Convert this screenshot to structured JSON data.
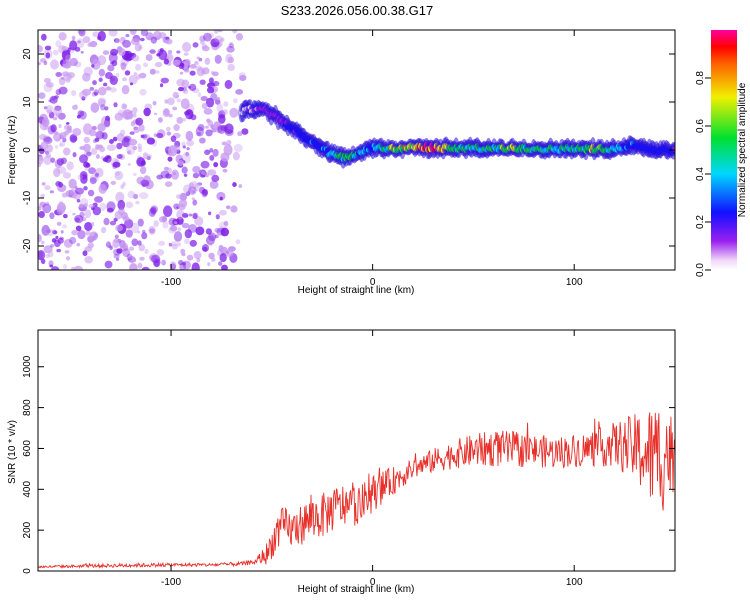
{
  "title": "S233.2026.056.00.38.G17",
  "chart_data": [
    {
      "type": "heatmap",
      "name": "spectrogram",
      "title": "S233.2026.056.00.38.G17",
      "xlabel": "Height of straight line (km)",
      "ylabel": "Frequency (Hz)",
      "xlim": [
        -166,
        150
      ],
      "ylim": [
        -25,
        25
      ],
      "x_ticks": [
        -100,
        0,
        100
      ],
      "y_ticks": [
        -20,
        -10,
        0,
        10,
        20
      ],
      "colorbar": {
        "label": "Normalized spectral amplitude",
        "range": [
          0.0,
          1.0
        ],
        "ticks": [
          0.0,
          0.2,
          0.4,
          0.6,
          0.8
        ],
        "tick_labels": [
          "0.0",
          "0.2",
          "0.4",
          "0.6",
          "0.8"
        ],
        "colormap": "rainbow (magenta-blue-cyan-green-yellow-red)"
      },
      "noise_region": {
        "x_range": [
          -166,
          -62
        ],
        "freq_range": [
          -25,
          25
        ],
        "amplitude": [
          0.0,
          0.15
        ]
      },
      "ridge": {
        "x": [
          -65,
          -55,
          -45,
          -38,
          -32,
          -26,
          -20,
          -14,
          -8,
          -3,
          0,
          10,
          20,
          30,
          40,
          50,
          60,
          70,
          80,
          90,
          100,
          110,
          120,
          130,
          140,
          150
        ],
        "frequency": [
          8,
          9,
          6,
          4,
          2,
          0.5,
          -1,
          -1.5,
          -1,
          0,
          0.5,
          0.3,
          0.5,
          0.5,
          0.3,
          0.4,
          0.2,
          0.4,
          0.3,
          0.2,
          0.3,
          0.2,
          0.3,
          1,
          0,
          0
        ],
        "amplitude": [
          0.1,
          0.15,
          0.2,
          0.3,
          0.35,
          0.4,
          0.5,
          0.6,
          0.5,
          0.4,
          0.45,
          0.7,
          0.8,
          1.0,
          0.6,
          0.55,
          0.6,
          0.7,
          0.6,
          0.55,
          0.6,
          0.7,
          0.5,
          0.35,
          0.3,
          0.25
        ]
      }
    },
    {
      "type": "line",
      "name": "snr",
      "xlabel": "Height of straight line (km)",
      "ylabel": "SNR (10 * v/v)",
      "xlim": [
        -166,
        150
      ],
      "ylim": [
        0,
        1180
      ],
      "x_ticks": [
        -100,
        0,
        100
      ],
      "y_ticks": [
        0,
        200,
        400,
        600,
        800,
        1000
      ],
      "color": "#e8302a",
      "series": [
        {
          "name": "SNR",
          "x": [
            -166,
            -140,
            -120,
            -100,
            -80,
            -65,
            -58,
            -52,
            -48,
            -44,
            -40,
            -35,
            -30,
            -25,
            -20,
            -15,
            -10,
            -5,
            0,
            5,
            10,
            15,
            20,
            30,
            40,
            50,
            60,
            70,
            80,
            90,
            100,
            110,
            120,
            130,
            135,
            140,
            145,
            150
          ],
          "mean": [
            20,
            25,
            28,
            30,
            30,
            35,
            45,
            90,
            180,
            220,
            200,
            230,
            260,
            270,
            300,
            320,
            320,
            330,
            380,
            410,
            440,
            470,
            500,
            540,
            570,
            590,
            600,
            595,
            590,
            580,
            590,
            600,
            620,
            600,
            580,
            550,
            590,
            560
          ],
          "noise_amplitude": [
            5,
            8,
            10,
            8,
            8,
            10,
            12,
            60,
            90,
            100,
            90,
            100,
            110,
            110,
            110,
            110,
            100,
            100,
            90,
            80,
            70,
            60,
            50,
            60,
            70,
            80,
            90,
            90,
            80,
            80,
            80,
            90,
            110,
            170,
            220,
            280,
            300,
            160
          ]
        }
      ]
    }
  ]
}
